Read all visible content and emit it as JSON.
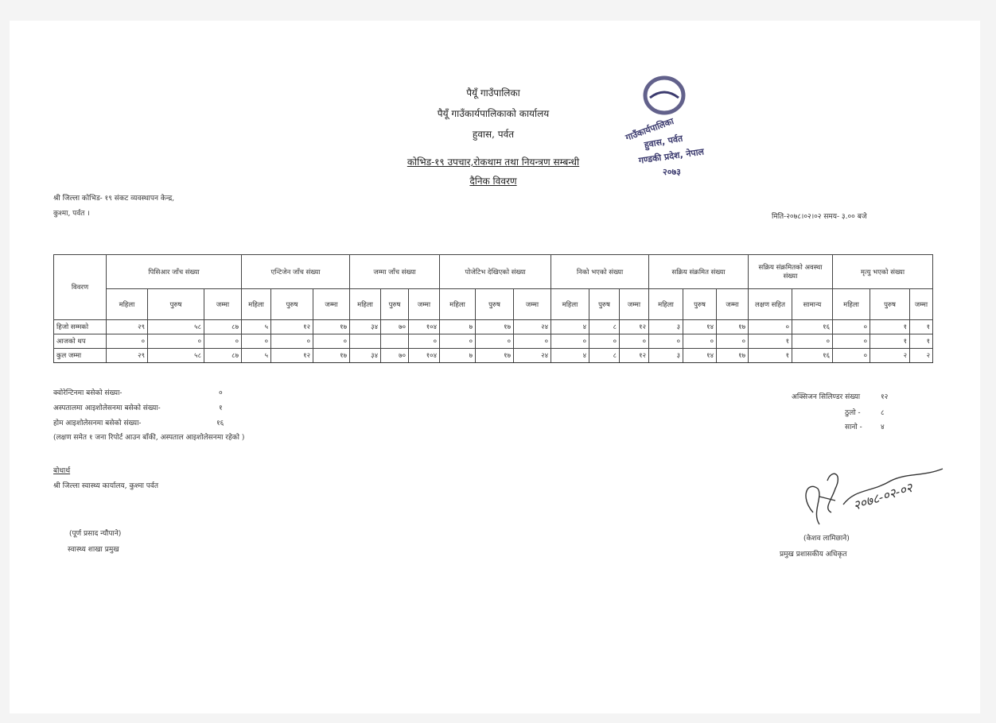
{
  "header": {
    "line1": "पैयूँ गाउँपालिका",
    "line2": "पैयूँ गाउँकार्यपालिकाको कार्यालय",
    "line3": "हुवास, पर्वत",
    "title": "कोभिड-१९ उपचार,रोकथाम तथा नियन्त्रण सम्बन्धी",
    "subtitle": "दैनिक विवरण"
  },
  "seal": {
    "text": "पैयूँ गाउँपालिका गाउँकार्यपालिकाको कार्यालय हुवास, पर्वत गण्डकी प्रदेश, नेपाल २०७३",
    "color": "#3b3a6e"
  },
  "recipient": {
    "line1": "श्री जिल्ला कोभिड- १९ संकट व्यवस्थापन केन्द्र,",
    "line2": "कुश्मा, पर्वत ।"
  },
  "date_line": "मिति-२०७८।०२।०२ समय- ३.०० बजे",
  "table": {
    "row_header": "विवरण",
    "groups": [
      {
        "label": "पिसिआर जाँच संख्या",
        "subs": [
          "महिला",
          "पुरुष",
          "जम्मा"
        ]
      },
      {
        "label": "एन्टिजेन जाँच संख्या",
        "subs": [
          "महिला",
          "पुरुष",
          "जम्मा"
        ]
      },
      {
        "label": "जम्मा जाँच संख्या",
        "subs": [
          "महिला",
          "पुरुष",
          "जम्मा"
        ]
      },
      {
        "label": "पोजेटिभ देखिएको संख्या",
        "subs": [
          "महिला",
          "पुरुष",
          "जम्मा"
        ]
      },
      {
        "label": "निको भएको संख्या",
        "subs": [
          "महिला",
          "पुरुष",
          "जम्मा"
        ]
      },
      {
        "label": "सक्रिय संक्रमित संख्या",
        "subs": [
          "महिला",
          "पुरुष",
          "जम्मा"
        ]
      },
      {
        "label": "सक्रिय संक्रमितको अवस्था संख्या",
        "subs": [
          "लक्षण सहित",
          "सामान्य"
        ]
      },
      {
        "label": "मृत्यु भएको संख्या",
        "subs": [
          "महिला",
          "पुरुष",
          "जम्मा"
        ]
      }
    ],
    "rows": [
      {
        "label": "हिजो सम्मको",
        "values": [
          "२९",
          "५८",
          "८७",
          "५",
          "१२",
          "१७",
          "३४",
          "७०",
          "१०४",
          "७",
          "१७",
          "२४",
          "४",
          "८",
          "१२",
          "३",
          "१४",
          "१७",
          "०",
          "१६",
          "०",
          "१",
          "१"
        ]
      },
      {
        "label": "आजको थप",
        "values": [
          "०",
          "०",
          "०",
          "०",
          "०",
          "०",
          "",
          "",
          "०",
          "०",
          "०",
          "०",
          "०",
          "०",
          "०",
          "०",
          "०",
          "०",
          "१",
          "०",
          "०",
          "१",
          "१"
        ]
      },
      {
        "label": "कुल जम्मा",
        "values": [
          "२९",
          "५८",
          "८७",
          "५",
          "१२",
          "१७",
          "३४",
          "७०",
          "१०४",
          "७",
          "१७",
          "२४",
          "४",
          "८",
          "१२",
          "३",
          "१४",
          "१७",
          "१",
          "१६",
          "०",
          "२",
          "२"
        ]
      }
    ]
  },
  "notes": {
    "quarantine_label": "क्वोरेन्टिनमा बसेको संख्या-",
    "quarantine_value": "०",
    "hospital_label": "अस्पतालमा आइशोलेसनमा बसेको संख्या-",
    "hospital_value": "१",
    "home_label": "होम आइशोलेसनमा बसेको संख्या-",
    "home_value": "१६",
    "remark": "(लक्षण समेत १ जना रिपोर्ट आउन बाँकी, अस्पताल आइशोलेसनमा रहेको )"
  },
  "oxygen": {
    "label": "अक्सिजन सिलिण्डर संख्या",
    "value": "१२",
    "big_label": "ठुलो -",
    "big_value": "८",
    "small_label": "सानो -",
    "small_value": "४"
  },
  "cc": {
    "heading": "बोधार्थ",
    "line": "श्री जिल्ला स्वास्थ्य कार्यालय, कुश्मा पर्वत"
  },
  "left_sign": {
    "name": "(पूर्ण प्रसाद न्यौपाने)",
    "title": "स्वास्थ्य शाखा प्रमुख"
  },
  "right_sign": {
    "name": "(केशव लामिछाने)",
    "title": "प्रमुख प्रशासकीय अधिकृत",
    "handwritten_date": "२०७८-०२-०२"
  }
}
